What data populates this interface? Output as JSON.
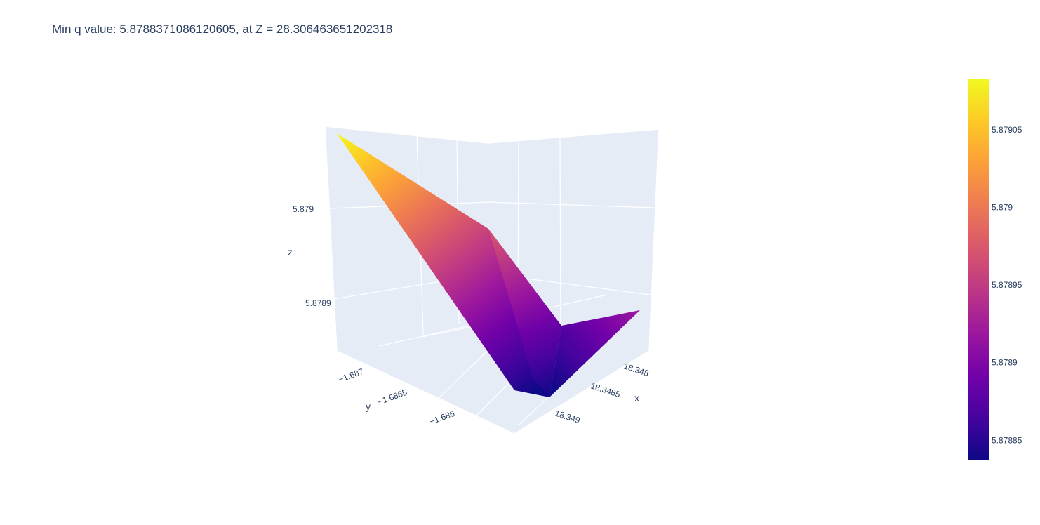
{
  "chart_data": {
    "type": "surface",
    "title": "Min q value: 5.8788371086120605, at Z = 28.306463651202318",
    "colorscale": "Plasma",
    "colorscale_stops": [
      "#0d0887",
      "#46039f",
      "#7201a8",
      "#9c179e",
      "#bd3786",
      "#d8576b",
      "#ed7953",
      "#fb9f3a",
      "#fdca26",
      "#f0f921"
    ],
    "scene_background": "#e5ecf6",
    "grid_color": "#ffffff",
    "text_color": "#2a3f5f",
    "x_axis": {
      "label": "x",
      "tick_labels": [
        "18.348",
        "18.3485",
        "18.349"
      ],
      "tick_values": [
        18.348,
        18.3485,
        18.349
      ],
      "range": [
        18.3476,
        18.3494
      ]
    },
    "y_axis": {
      "label": "y",
      "tick_labels": [
        "−1.687",
        "−1.6865",
        "−1.686"
      ],
      "tick_values": [
        -1.687,
        -1.6865,
        -1.686
      ],
      "range": [
        -1.6873,
        -1.6858
      ]
    },
    "z_axis": {
      "label": "z",
      "tick_labels": [
        "5.8789",
        "5.879"
      ],
      "tick_values": [
        5.8789,
        5.879
      ],
      "range": [
        5.87883,
        5.87908
      ]
    },
    "surface_points": [
      {
        "x": 18.3494,
        "y": -1.6873,
        "z": 5.87908
      },
      {
        "x": 18.3494,
        "y": -1.6858,
        "z": 5.87892
      },
      {
        "x": 18.3485,
        "y": -1.6858,
        "z": 5.87884
      },
      {
        "x": 18.3476,
        "y": -1.6858,
        "z": 5.87891
      },
      {
        "x": 18.3485,
        "y": -1.6873,
        "z": 5.87898
      }
    ],
    "colorbar": {
      "tick_labels": [
        "5.87905",
        "5.879",
        "5.87895",
        "5.8789",
        "5.87885"
      ],
      "tick_values": [
        5.87905,
        5.879,
        5.87895,
        5.8789,
        5.87885
      ],
      "range": [
        5.878837,
        5.879083
      ]
    }
  }
}
